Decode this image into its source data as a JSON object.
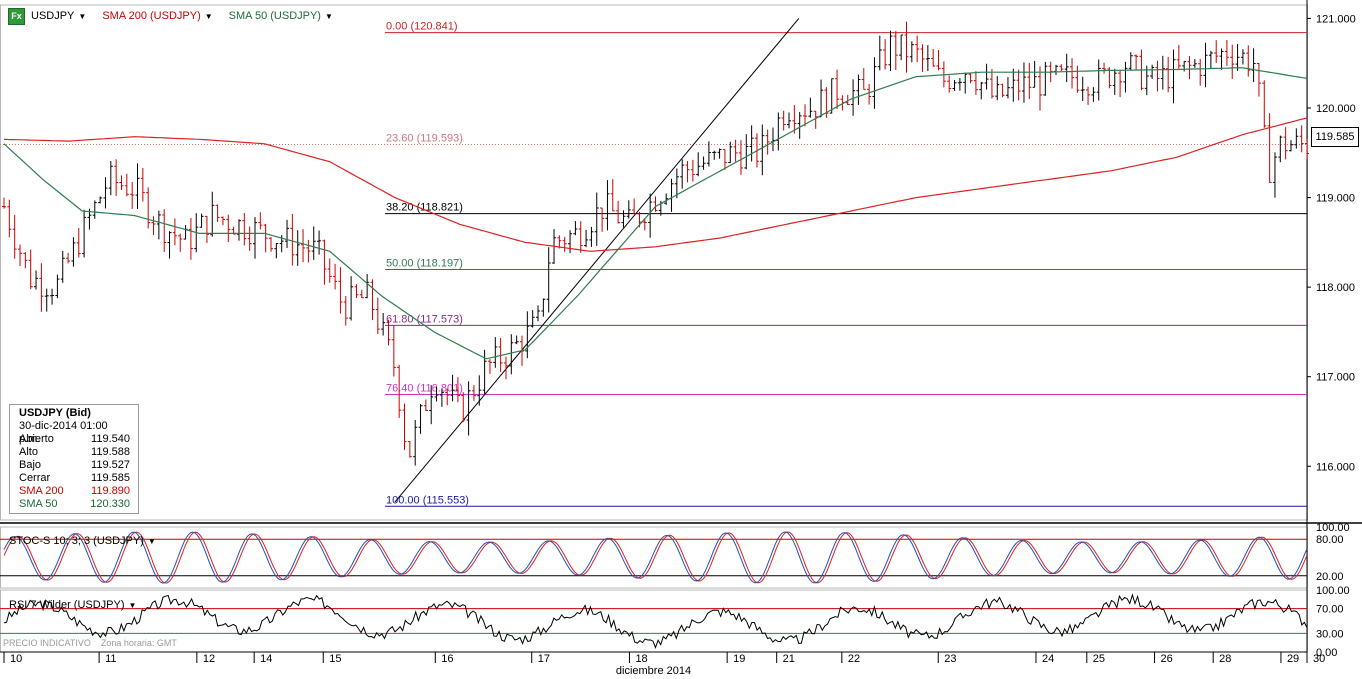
{
  "header": {
    "icon_label": "Fx",
    "items": [
      {
        "label": "USDJPY",
        "color": "#000000"
      },
      {
        "label": "SMA 200 (USDJPY)",
        "color": "#cc0000"
      },
      {
        "label": "SMA 50 (USDJPY)",
        "color": "#1d6b3a"
      }
    ]
  },
  "last_price": "119.585",
  "infobox": {
    "title": "USDJPY (Bid)",
    "datetime": "30-dic-2014 01:00 p.m.",
    "rows": [
      {
        "label": "Abierto",
        "value": "119.540",
        "color": "#000000"
      },
      {
        "label": "Alto",
        "value": "119.588",
        "color": "#000000"
      },
      {
        "label": "Bajo",
        "value": "119.527",
        "color": "#000000"
      },
      {
        "label": "Cerrar",
        "value": "119.585",
        "color": "#000000"
      },
      {
        "label": "SMA 200",
        "value": "119.890",
        "color": "#cc0000"
      },
      {
        "label": "SMA 50",
        "value": "120.330",
        "color": "#1d6b3a"
      }
    ]
  },
  "stoch_label": "STOC-S 10; 3; 3 (USDJPY)",
  "rsi_label": "RSI 7 Wilder (USDJPY)",
  "watermark": {
    "left": "PRECIO INDICATIVO",
    "right": "Zona horaria: GMT"
  },
  "month_label": "diciembre 2014",
  "colors": {
    "up": "#000000",
    "down": "#cc0000",
    "sma200": "#dd2222",
    "sma50": "#2e7d4f",
    "stoch_k": "#2a4fb0",
    "stoch_d": "#dd2222",
    "rsi": "#000000"
  },
  "chart_data": [
    {
      "type": "candlestick",
      "title": "USDJPY",
      "y_axis_ticks": [
        "121.000",
        "120.000",
        "119.000",
        "118.000",
        "117.000",
        "116.000"
      ],
      "ylim": [
        115.4,
        121.15
      ],
      "x_tick_labels": [
        "10",
        "11",
        "12",
        "14",
        "15",
        "16",
        "17",
        "18",
        "19",
        "21",
        "22",
        "23",
        "24",
        "25",
        "26",
        "28",
        "29",
        "30"
      ],
      "x_tick_fractions": [
        0.0,
        0.073,
        0.148,
        0.192,
        0.245,
        0.331,
        0.405,
        0.48,
        0.555,
        0.593,
        0.643,
        0.717,
        0.792,
        0.831,
        0.883,
        0.928,
        0.98,
        1.0
      ],
      "fibonacci_levels": [
        {
          "label": "0.00 (120.841)",
          "value": 120.841,
          "color": "#cc2222"
        },
        {
          "label": "23.60 (119.593)",
          "value": 119.593,
          "color": "#cc7777",
          "dotted": true
        },
        {
          "label": "38.20 (118.821)",
          "value": 118.821,
          "color": "#000000"
        },
        {
          "label": "50.00 (118.197)",
          "value": 118.197,
          "color": "#2e7d4f"
        },
        {
          "label": "61.80 (117.573)",
          "value": 117.573,
          "color": "#8a2a8a"
        },
        {
          "label": "76.40 (116.801)",
          "value": 116.801,
          "color": "#cc33cc"
        },
        {
          "label": "100.00 (115.553)",
          "value": 115.553,
          "color": "#1a1aaa"
        }
      ],
      "trendline": {
        "from": {
          "x": 0.3,
          "y": 115.6
        },
        "to": {
          "x": 0.61,
          "y": 121.0
        }
      },
      "close_anchors": [
        [
          0,
          118.9
        ],
        [
          0.02,
          118.1
        ],
        [
          0.04,
          118.0
        ],
        [
          0.06,
          118.6
        ],
        [
          0.08,
          119.2
        ],
        [
          0.1,
          119.1
        ],
        [
          0.12,
          118.7
        ],
        [
          0.14,
          118.5
        ],
        [
          0.16,
          118.8
        ],
        [
          0.18,
          118.7
        ],
        [
          0.2,
          118.6
        ],
        [
          0.22,
          118.5
        ],
        [
          0.24,
          118.4
        ],
        [
          0.26,
          117.8
        ],
        [
          0.28,
          117.9
        ],
        [
          0.3,
          117.1
        ],
        [
          0.31,
          116.1
        ],
        [
          0.33,
          117.0
        ],
        [
          0.35,
          116.6
        ],
        [
          0.37,
          117.1
        ],
        [
          0.39,
          117.3
        ],
        [
          0.41,
          117.6
        ],
        [
          0.42,
          118.5
        ],
        [
          0.44,
          118.6
        ],
        [
          0.46,
          118.9
        ],
        [
          0.48,
          118.7
        ],
        [
          0.5,
          119.0
        ],
        [
          0.52,
          119.3
        ],
        [
          0.54,
          119.4
        ],
        [
          0.56,
          119.5
        ],
        [
          0.58,
          119.5
        ],
        [
          0.6,
          120.0
        ],
        [
          0.62,
          120.0
        ],
        [
          0.64,
          120.2
        ],
        [
          0.66,
          120.15
        ],
        [
          0.68,
          120.7
        ],
        [
          0.7,
          120.6
        ],
        [
          0.72,
          120.3
        ],
        [
          0.74,
          120.45
        ],
        [
          0.76,
          120.1
        ],
        [
          0.78,
          120.25
        ],
        [
          0.8,
          120.3
        ],
        [
          0.82,
          120.35
        ],
        [
          0.84,
          120.3
        ],
        [
          0.86,
          120.5
        ],
        [
          0.88,
          120.3
        ],
        [
          0.9,
          120.4
        ],
        [
          0.92,
          120.5
        ],
        [
          0.94,
          120.65
        ],
        [
          0.96,
          120.5
        ],
        [
          0.97,
          119.3
        ],
        [
          0.98,
          119.6
        ],
        [
          1.0,
          119.585
        ]
      ],
      "sma50_anchors": [
        [
          0,
          119.6
        ],
        [
          0.03,
          119.2
        ],
        [
          0.06,
          118.85
        ],
        [
          0.1,
          118.8
        ],
        [
          0.15,
          118.6
        ],
        [
          0.2,
          118.6
        ],
        [
          0.25,
          118.4
        ],
        [
          0.29,
          117.9
        ],
        [
          0.33,
          117.5
        ],
        [
          0.37,
          117.2
        ],
        [
          0.4,
          117.3
        ],
        [
          0.44,
          117.9
        ],
        [
          0.47,
          118.4
        ],
        [
          0.5,
          118.9
        ],
        [
          0.55,
          119.3
        ],
        [
          0.6,
          119.7
        ],
        [
          0.65,
          120.1
        ],
        [
          0.7,
          120.35
        ],
        [
          0.75,
          120.4
        ],
        [
          0.8,
          120.4
        ],
        [
          0.85,
          120.42
        ],
        [
          0.9,
          120.43
        ],
        [
          0.95,
          120.45
        ],
        [
          1.0,
          120.33
        ]
      ],
      "sma200_anchors": [
        [
          0,
          119.65
        ],
        [
          0.05,
          119.63
        ],
        [
          0.1,
          119.68
        ],
        [
          0.15,
          119.65
        ],
        [
          0.2,
          119.6
        ],
        [
          0.25,
          119.4
        ],
        [
          0.3,
          119.0
        ],
        [
          0.35,
          118.7
        ],
        [
          0.4,
          118.5
        ],
        [
          0.45,
          118.4
        ],
        [
          0.5,
          118.45
        ],
        [
          0.55,
          118.55
        ],
        [
          0.6,
          118.7
        ],
        [
          0.65,
          118.85
        ],
        [
          0.7,
          119.0
        ],
        [
          0.75,
          119.1
        ],
        [
          0.8,
          119.2
        ],
        [
          0.85,
          119.3
        ],
        [
          0.9,
          119.45
        ],
        [
          0.95,
          119.7
        ],
        [
          1.0,
          119.89
        ]
      ]
    },
    {
      "type": "line",
      "title": "STOC-S 10; 3; 3 (USDJPY)",
      "ylim": [
        0,
        100
      ],
      "y_axis_ticks": [
        "100.00",
        "80.00",
        "20.00"
      ],
      "reference_lines": [
        80,
        20
      ],
      "cycles": 22
    },
    {
      "type": "line",
      "title": "RSI 7 Wilder (USDJPY)",
      "ylim": [
        0,
        100
      ],
      "y_axis_ticks": [
        "100.00",
        "70.00",
        "30.00",
        "0.00"
      ],
      "reference_lines": [
        70,
        30
      ]
    }
  ]
}
